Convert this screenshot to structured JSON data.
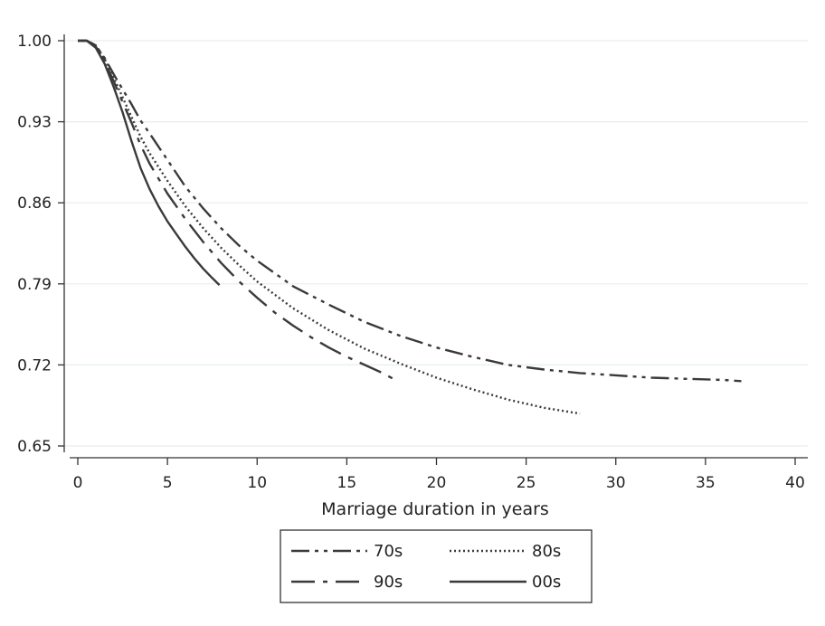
{
  "chart_data": {
    "type": "line",
    "xlabel": "Marriage duration in years",
    "ylabel": "",
    "xlim": [
      0,
      40
    ],
    "ylim": [
      0.65,
      1.0
    ],
    "xticks": [
      "0",
      "5",
      "10",
      "15",
      "20",
      "25",
      "30",
      "35",
      "40"
    ],
    "yticks": [
      "0.65",
      "0.72",
      "0.79",
      "0.86",
      "0.93",
      "1.00"
    ],
    "grid": "horizontal",
    "legend_position": "bottom",
    "series": [
      {
        "name": "70s",
        "dash": "dash-dot-dot",
        "x": [
          0,
          0.5,
          1,
          1.5,
          2,
          2.5,
          3,
          3.5,
          4,
          5,
          6,
          7,
          8,
          9,
          10,
          12,
          14,
          16,
          18,
          20,
          22,
          24,
          26,
          28,
          30,
          32,
          34,
          36,
          37
        ],
        "y": [
          1.0,
          1.0,
          0.996,
          0.985,
          0.971,
          0.958,
          0.945,
          0.931,
          0.92,
          0.897,
          0.874,
          0.855,
          0.838,
          0.823,
          0.81,
          0.788,
          0.772,
          0.757,
          0.745,
          0.735,
          0.727,
          0.72,
          0.716,
          0.713,
          0.711,
          0.709,
          0.708,
          0.707,
          0.706
        ]
      },
      {
        "name": "80s",
        "dash": "dotted",
        "x": [
          0,
          0.5,
          1,
          1.5,
          2,
          2.5,
          3,
          3.5,
          4,
          5,
          6,
          7,
          8,
          9,
          10,
          12,
          14,
          16,
          18,
          20,
          22,
          24,
          26,
          28
        ],
        "y": [
          1.0,
          1.0,
          0.996,
          0.984,
          0.968,
          0.951,
          0.934,
          0.917,
          0.903,
          0.879,
          0.857,
          0.838,
          0.821,
          0.806,
          0.792,
          0.769,
          0.75,
          0.734,
          0.721,
          0.709,
          0.699,
          0.69,
          0.683,
          0.678
        ]
      },
      {
        "name": "90s",
        "dash": "long-dash-dot",
        "x": [
          0,
          0.5,
          1,
          1.5,
          2,
          2.5,
          3,
          3.5,
          4,
          5,
          6,
          7,
          8,
          9,
          10,
          11,
          12,
          13,
          14,
          15,
          16,
          17,
          17.6
        ],
        "y": [
          1.0,
          1.0,
          0.995,
          0.982,
          0.965,
          0.947,
          0.929,
          0.91,
          0.894,
          0.868,
          0.846,
          0.826,
          0.808,
          0.792,
          0.778,
          0.765,
          0.754,
          0.744,
          0.735,
          0.727,
          0.72,
          0.713,
          0.708
        ]
      },
      {
        "name": "00s",
        "dash": "solid",
        "x": [
          0,
          0.5,
          1,
          1.5,
          2,
          2.5,
          3,
          3.5,
          4,
          4.5,
          5,
          5.5,
          6,
          6.5,
          7,
          7.5,
          7.9
        ],
        "y": [
          1.0,
          1.0,
          0.994,
          0.98,
          0.96,
          0.938,
          0.913,
          0.89,
          0.872,
          0.857,
          0.844,
          0.833,
          0.822,
          0.812,
          0.803,
          0.795,
          0.789
        ]
      }
    ]
  }
}
